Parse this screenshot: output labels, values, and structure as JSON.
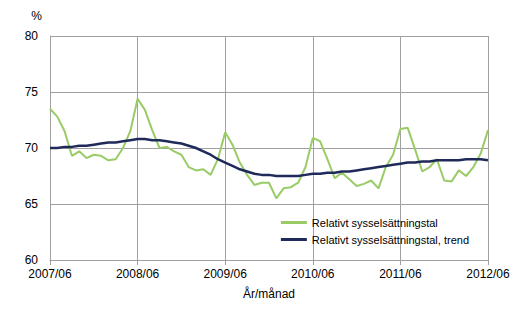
{
  "chart_data": {
    "type": "line",
    "y_label": "%",
    "x_label": "År/månad",
    "categories": [
      "2007/06",
      null,
      null,
      null,
      null,
      null,
      null,
      null,
      null,
      null,
      null,
      null,
      "2008/06",
      null,
      null,
      null,
      null,
      null,
      null,
      null,
      null,
      null,
      null,
      null,
      "2009/06",
      null,
      null,
      null,
      null,
      null,
      null,
      null,
      null,
      null,
      null,
      null,
      "2010/06",
      null,
      null,
      null,
      null,
      null,
      null,
      null,
      null,
      null,
      null,
      null,
      "2011/06",
      null,
      null,
      null,
      null,
      null,
      null,
      null,
      null,
      null,
      null,
      null,
      "2012/06"
    ],
    "series": [
      {
        "name": "Relativt sysselsättningstal",
        "color": "#99cc66",
        "values": [
          73.5,
          72.8,
          71.5,
          69.3,
          69.7,
          69.1,
          69.4,
          69.3,
          68.9,
          69.0,
          70.0,
          71.5,
          74.4,
          73.4,
          71.6,
          70.0,
          70.1,
          69.7,
          69.4,
          68.3,
          68.0,
          68.1,
          67.6,
          69.0,
          71.4,
          70.3,
          68.7,
          67.6,
          66.7,
          66.9,
          66.9,
          65.5,
          66.4,
          66.5,
          66.9,
          68.3,
          70.9,
          70.6,
          69.0,
          67.3,
          67.8,
          67.2,
          66.6,
          66.8,
          67.1,
          66.4,
          68.3,
          69.4,
          71.7,
          71.8,
          69.9,
          67.9,
          68.3,
          69.0,
          67.1,
          67.0,
          68.0,
          67.5,
          68.3,
          69.5,
          71.6
        ]
      },
      {
        "name": "Relativt sysselsättningstal, trend",
        "color": "#1f2a5a",
        "values": [
          70.0,
          70.0,
          70.1,
          70.1,
          70.2,
          70.2,
          70.3,
          70.4,
          70.5,
          70.5,
          70.6,
          70.7,
          70.8,
          70.8,
          70.7,
          70.7,
          70.6,
          70.5,
          70.4,
          70.2,
          70.0,
          69.7,
          69.4,
          69.0,
          68.7,
          68.4,
          68.1,
          67.9,
          67.7,
          67.6,
          67.6,
          67.5,
          67.5,
          67.5,
          67.5,
          67.6,
          67.7,
          67.7,
          67.8,
          67.8,
          67.9,
          67.9,
          68.0,
          68.1,
          68.2,
          68.3,
          68.4,
          68.5,
          68.6,
          68.7,
          68.7,
          68.8,
          68.8,
          68.9,
          68.9,
          68.9,
          68.9,
          69.0,
          69.0,
          69.0,
          68.9
        ]
      }
    ],
    "ylim": [
      60,
      80
    ],
    "yticks": [
      60,
      65,
      70,
      75,
      80
    ],
    "grid": true,
    "legend": "lower right"
  }
}
